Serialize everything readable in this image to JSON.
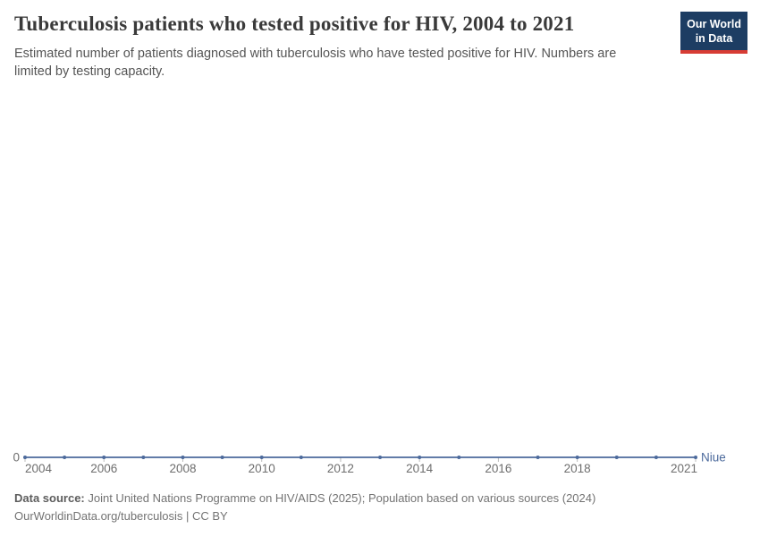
{
  "header": {
    "title": "Tuberculosis patients who tested positive for HIV, 2004 to 2021",
    "subtitle": "Estimated number of patients diagnosed with tuberculosis who have tested positive for HIV. Numbers are limited by testing capacity.",
    "logo": {
      "line1": "Our World",
      "line2": "in Data",
      "bg_color": "#1d3d63",
      "bar_color": "#d73c34"
    }
  },
  "chart_data": {
    "type": "line",
    "title": "Tuberculosis patients who tested positive for HIV, 2004 to 2021",
    "xlabel": "",
    "ylabel": "",
    "x_range": [
      2004,
      2021
    ],
    "ylim": [
      0,
      0
    ],
    "grid": false,
    "x_ticks": [
      2004,
      2006,
      2008,
      2010,
      2012,
      2014,
      2016,
      2018,
      2021
    ],
    "y_axis": {
      "zero_label": "0"
    },
    "legend": "entity-label-at-line-end",
    "series": [
      {
        "name": "Niue",
        "color": "#4C6A9C",
        "points": [
          {
            "x": 2004,
            "y": 0
          },
          {
            "x": 2005,
            "y": 0
          },
          {
            "x": 2006,
            "y": 0
          },
          {
            "x": 2007,
            "y": 0
          },
          {
            "x": 2008,
            "y": 0
          },
          {
            "x": 2009,
            "y": 0
          },
          {
            "x": 2010,
            "y": 0
          },
          {
            "x": 2011,
            "y": 0
          },
          {
            "x": 2013,
            "y": 0
          },
          {
            "x": 2014,
            "y": 0
          },
          {
            "x": 2015,
            "y": 0
          },
          {
            "x": 2017,
            "y": 0
          },
          {
            "x": 2018,
            "y": 0
          },
          {
            "x": 2019,
            "y": 0
          },
          {
            "x": 2020,
            "y": 0
          },
          {
            "x": 2021,
            "y": 0
          }
        ],
        "missing_years": [
          2012,
          2016
        ]
      }
    ],
    "style_colors": {
      "tick": "#bbbbbb",
      "tick_label": "#6e6e6e",
      "zero_label": "#6e6e6e"
    }
  },
  "footer": {
    "source_label": "Data source:",
    "source_text": " Joint United Nations Programme on HIV/AIDS (2025); Population based on various sources (2024)",
    "link": "OurWorldinData.org/tuberculosis",
    "separator": " | ",
    "license": "CC BY"
  }
}
